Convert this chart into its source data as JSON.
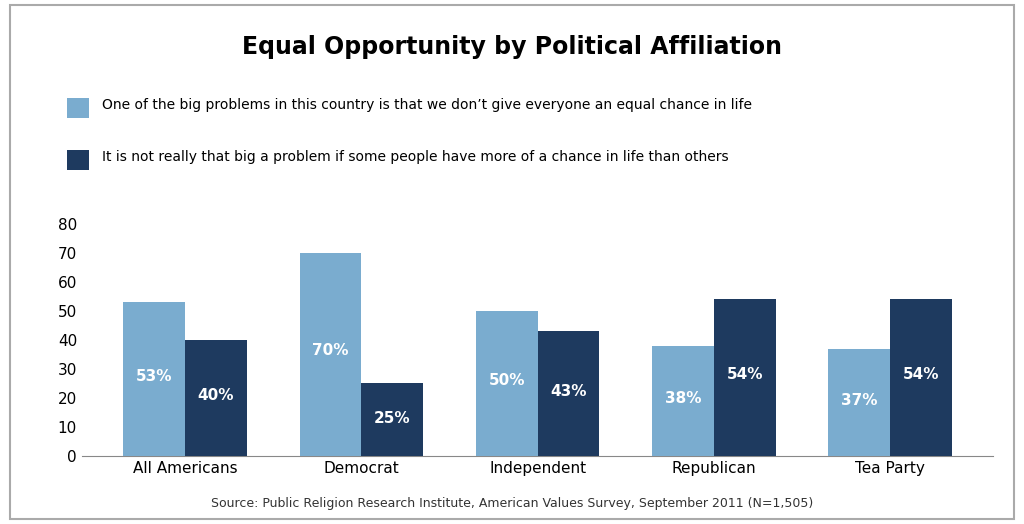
{
  "title": "Equal Opportunity by Political Affiliation",
  "categories": [
    "All Americans",
    "Democrat",
    "Independent",
    "Republican",
    "Tea Party"
  ],
  "series1_label": "One of the big problems in this country is that we don’t give everyone an equal chance in life",
  "series2_label": "It is not really that big a problem if some people have more of a chance in life than others",
  "series1_values": [
    53,
    70,
    50,
    38,
    37
  ],
  "series2_values": [
    40,
    25,
    43,
    54,
    54
  ],
  "series1_color": "#7aaccf",
  "series2_color": "#1e3a5f",
  "bar_width": 0.35,
  "ylim": [
    0,
    85
  ],
  "yticks": [
    0,
    10,
    20,
    30,
    40,
    50,
    60,
    70,
    80
  ],
  "source_text": "Source: Public Religion Research Institute, American Values Survey, September 2011 (N=1,505)",
  "value_fontsize": 11,
  "label_fontsize": 11,
  "title_fontsize": 17,
  "source_fontsize": 9,
  "legend_fontsize": 10,
  "background_color": "#ffffff",
  "border_color": "#aaaaaa"
}
